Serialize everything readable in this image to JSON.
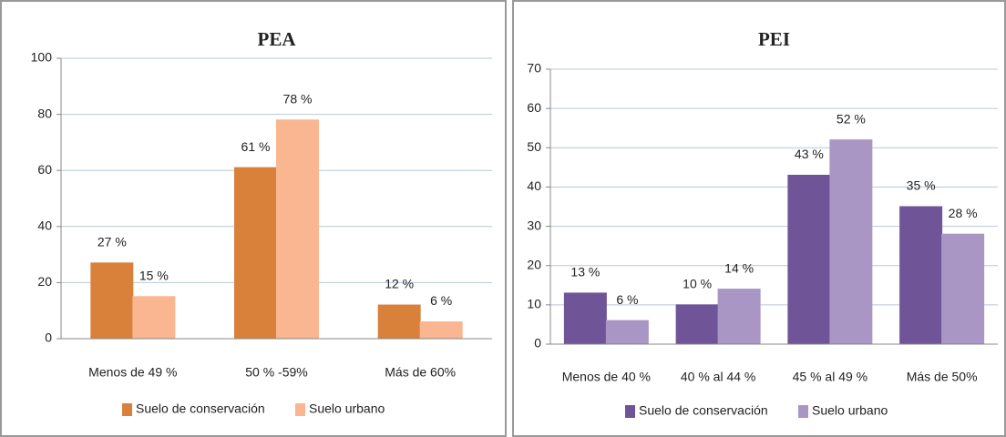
{
  "chart_data": [
    {
      "type": "bar",
      "title": "PEA",
      "categories": [
        "Menos de 49 %",
        "50 % -59%",
        "Más de 60%"
      ],
      "series": [
        {
          "name": "Suelo de conservación",
          "color": "#d9813a",
          "values": [
            27,
            61,
            12
          ],
          "value_labels": [
            "27 %",
            "61 %",
            "12 %"
          ]
        },
        {
          "name": "Suelo urbano",
          "color": "#f9b690",
          "values": [
            15,
            78,
            6
          ],
          "value_labels": [
            "15 %",
            "78 %",
            "6 %"
          ]
        }
      ],
      "ylim": [
        0,
        100
      ],
      "yticks": [
        0,
        20,
        40,
        60,
        80,
        100
      ],
      "grid": true,
      "legend": "bottom"
    },
    {
      "type": "bar",
      "title": "PEI",
      "categories": [
        "Menos de 40 %",
        "40 % al 44 %",
        "45 % al 49 %",
        "Más de 50%"
      ],
      "series": [
        {
          "name": "Suelo de conservación",
          "color": "#6f5597",
          "values": [
            13,
            10,
            43,
            35
          ],
          "value_labels": [
            "13 %",
            "10 %",
            "43 %",
            "35 %"
          ]
        },
        {
          "name": "Suelo urbano",
          "color": "#a996c4",
          "values": [
            6,
            14,
            52,
            28
          ],
          "value_labels": [
            "6 %",
            "14 %",
            "52 %",
            "28 %"
          ]
        }
      ],
      "ylim": [
        0,
        70
      ],
      "yticks": [
        0,
        10,
        20,
        30,
        40,
        50,
        60,
        70
      ],
      "grid": true,
      "legend": "bottom"
    }
  ]
}
